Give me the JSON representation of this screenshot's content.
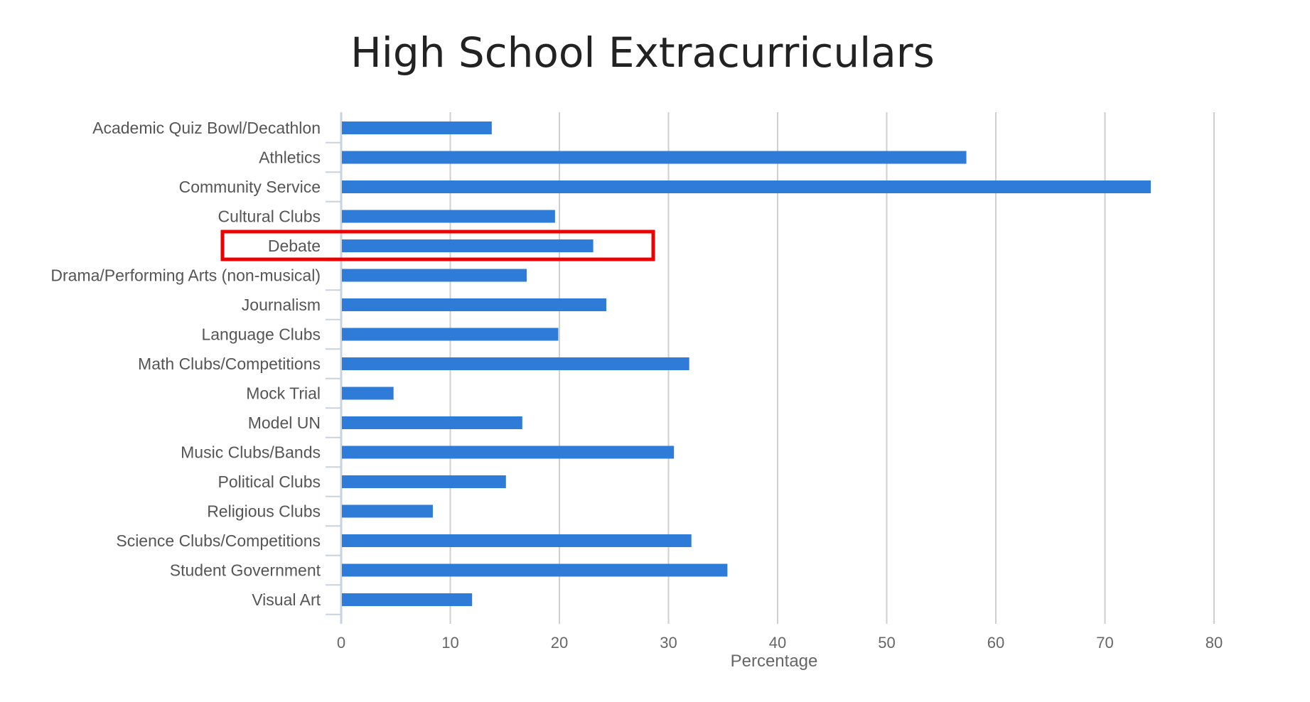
{
  "chart_data": {
    "type": "bar",
    "orientation": "horizontal",
    "title": "High School Extracurriculars",
    "xlabel": "Percentage",
    "ylabel": "",
    "xlim": [
      0,
      80
    ],
    "x_ticks": [
      "0",
      "10",
      "20",
      "30",
      "40",
      "50",
      "60",
      "70",
      "80"
    ],
    "grid": true,
    "bar_color": "#2e7bd8",
    "categories": [
      "Academic Quiz Bowl/Decathlon",
      "Athletics",
      "Community Service",
      "Cultural Clubs",
      "Debate",
      "Drama/Performing Arts (non-musical)",
      "Journalism",
      "Language Clubs",
      "Math Clubs/Competitions",
      "Mock Trial",
      "Model UN",
      "Music Clubs/Bands",
      "Political Clubs",
      "Religious Clubs",
      "Science Clubs/Competitions",
      "Student Government",
      "Visual Art"
    ],
    "values": [
      13.8,
      57.3,
      74.2,
      19.6,
      23.1,
      17.0,
      24.3,
      19.9,
      31.9,
      4.8,
      16.6,
      30.5,
      15.1,
      8.4,
      32.1,
      35.4,
      12.0
    ],
    "highlight": {
      "category": "Debate",
      "color": "#ee0000"
    }
  }
}
